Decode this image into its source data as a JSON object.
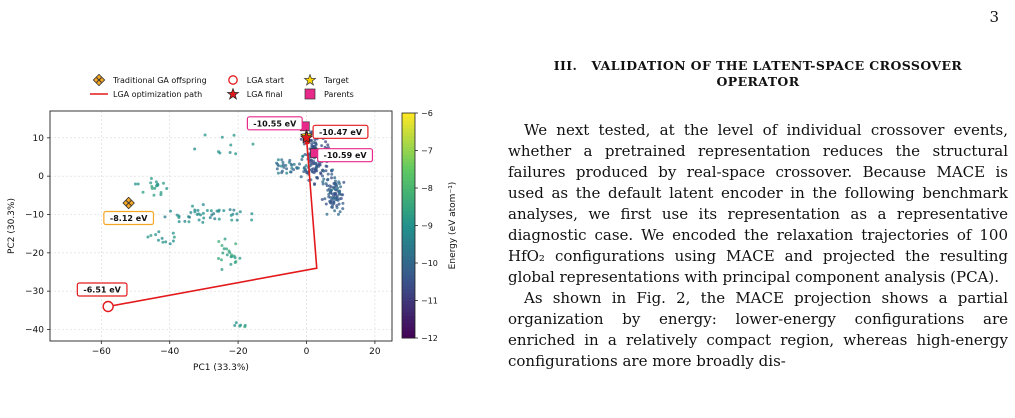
{
  "page_number": "3",
  "section": {
    "number": "III.",
    "title": "VALIDATION OF THE LATENT-SPACE CROSSOVER OPERATOR"
  },
  "paragraphs": [
    "We next tested, at the level of individual crossover events, whether a pretrained representation reduces the structural failures produced by real-space crossover. Because MACE is used as the default latent encoder in the following benchmark analyses, we first use its representation as a representative diagnostic case. We encoded the relaxation trajectories of 100 HfO₂ configurations using MACE and projected the resulting global representations with principal component analysis (PCA).",
    "As shown in Fig. 2, the MACE projection shows a partial organization by energy: lower-energy configurations are enriched in a relatively compact region, whereas high-energy configurations are more broadly dis-"
  ],
  "figure": {
    "legend": [
      {
        "label": "Traditional GA offspring",
        "icon": "x-diamond-icon"
      },
      {
        "label": "LGA start",
        "icon": "open-circle-icon"
      },
      {
        "label": "Target",
        "icon": "star-icon"
      },
      {
        "label": "LGA optimization path",
        "icon": "red-line-icon"
      },
      {
        "label": "LGA final",
        "icon": "red-star-icon"
      },
      {
        "label": "Parents",
        "icon": "magenta-square-icon"
      }
    ],
    "colors": {
      "path": "#e31a1c",
      "parents": "#e7298a",
      "target": "#ffd700",
      "ga": "#f5a623"
    }
  },
  "chart_data": {
    "type": "scatter",
    "xlabel": "PC1 (33.3%)",
    "ylabel": "PC2 (30.3%)",
    "xlim": [
      -75,
      25
    ],
    "ylim": [
      -43,
      17
    ],
    "xticks": [
      -60,
      -40,
      -20,
      0,
      20
    ],
    "yticks": [
      -40,
      -30,
      -20,
      -10,
      0,
      10
    ],
    "xtick_labels": [
      "−60",
      "−40",
      "−20",
      "0",
      "20"
    ],
    "ytick_labels": [
      "−40",
      "−30",
      "−20",
      "−10",
      "0",
      "10"
    ],
    "grid": true,
    "colorbar": {
      "label": "Energy (eV atom⁻¹)",
      "range": [
        -12,
        -6
      ],
      "ticks": [
        -6,
        -7,
        -8,
        -9,
        -10,
        -11,
        -12
      ],
      "tick_labels": [
        "−6",
        "−7",
        "−8",
        "−9",
        "−10",
        "−11",
        "−12"
      ],
      "colormap": "viridis"
    },
    "lga_path": [
      {
        "x": -58,
        "y": -34
      },
      {
        "x": 3,
        "y": -24
      },
      {
        "x": 0,
        "y": 10
      }
    ],
    "lga_start": {
      "x": -58,
      "y": -34,
      "energy_label": "-6.51 eV"
    },
    "lga_final": {
      "x": 0,
      "y": 10,
      "energy_label": "-10.47 eV"
    },
    "target": {
      "x": 0,
      "y": 10.5
    },
    "parents": [
      {
        "x": -0.5,
        "y": 13,
        "energy_label": "-10.55 eV"
      },
      {
        "x": 2.5,
        "y": 6,
        "energy_label": "-10.59 eV"
      }
    ],
    "ga_offspring": {
      "x": -52,
      "y": -7,
      "energy_label": "-8.12 eV"
    }
  }
}
